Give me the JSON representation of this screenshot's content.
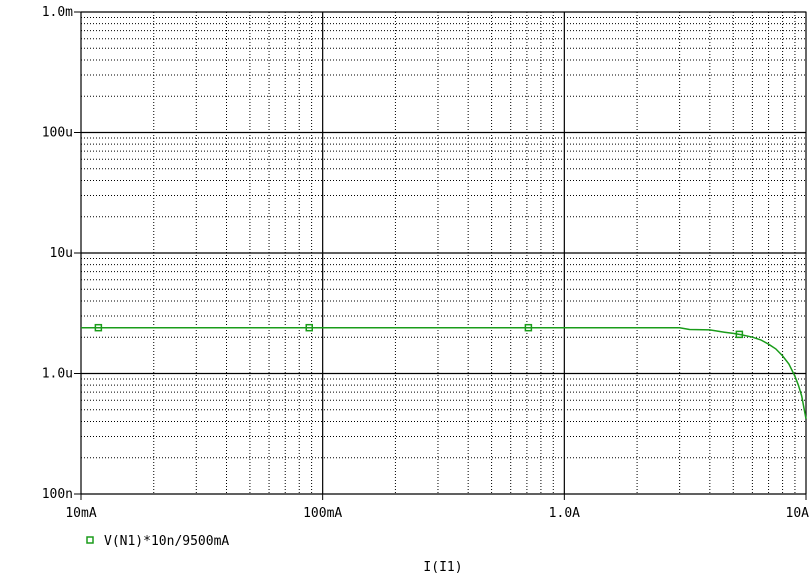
{
  "chart_data": {
    "type": "line",
    "title": "",
    "xlabel": "I(I1)",
    "ylabel": "",
    "x_scale": "log",
    "y_scale": "log",
    "xlim": [
      0.01,
      10
    ],
    "ylim": [
      1e-07,
      0.001
    ],
    "x_ticks": [
      {
        "value": 0.01,
        "label": "10mA"
      },
      {
        "value": 0.1,
        "label": "100mA"
      },
      {
        "value": 1,
        "label": "1.0A"
      },
      {
        "value": 10,
        "label": "10A"
      }
    ],
    "y_ticks": [
      {
        "value": 0.001,
        "label": "1.0m"
      },
      {
        "value": 0.0001,
        "label": "100u"
      },
      {
        "value": 1e-05,
        "label": "10u"
      },
      {
        "value": 1e-06,
        "label": "1.0u"
      },
      {
        "value": 1e-07,
        "label": "100n"
      }
    ],
    "grid": true,
    "legend_position": "bottom-left",
    "series": [
      {
        "name": "V(N1)*10n/9500mA",
        "color": "#1a9c1a",
        "marker": "square",
        "x": [
          0.01,
          0.1,
          1,
          2.5,
          3,
          3.3,
          4,
          4.6,
          5,
          5.4,
          6,
          6.5,
          7,
          7.5,
          8,
          8.5,
          9,
          9.3,
          9.6,
          9.8,
          10
        ],
        "y": [
          2.4e-06,
          2.4e-06,
          2.4e-06,
          2.4e-06,
          2.4e-06,
          2.32e-06,
          2.3e-06,
          2.2e-06,
          2.15e-06,
          2.1e-06,
          2e-06,
          1.9e-06,
          1.75e-06,
          1.6e-06,
          1.4e-06,
          1.2e-06,
          9.5e-07,
          8e-07,
          6.5e-07,
          5.2e-07,
          4.2e-07
        ],
        "marker_x": [
          0.0118,
          0.088,
          0.71,
          5.3
        ]
      }
    ]
  }
}
